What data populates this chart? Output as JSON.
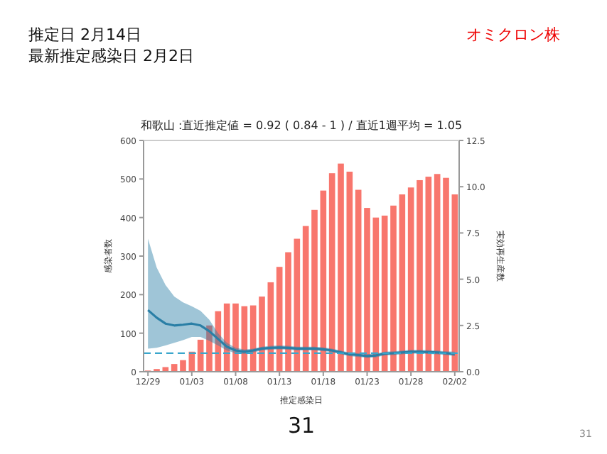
{
  "chart_data": {
    "type": "bar",
    "title": "和歌山 :直近推定値 = 0.92 ( 0.84 - 1 ) / 直近1週平均 = 1.05",
    "annotations": [
      "推定日  2月14日",
      "最新推定感染日  2月2日",
      "オミクロン株",
      "31",
      "31"
    ],
    "xlabel": "推定感染日",
    "ylabel": "感染者数",
    "y2label": "実効再生産数",
    "categories": [
      "12/29",
      null,
      null,
      null,
      null,
      "01/03",
      null,
      null,
      null,
      null,
      "01/08",
      null,
      null,
      null,
      null,
      "01/13",
      null,
      null,
      null,
      null,
      "01/18",
      null,
      null,
      null,
      null,
      "01/23",
      null,
      null,
      null,
      null,
      "01/28",
      null,
      null,
      null,
      null,
      "02/02"
    ],
    "series": [
      {
        "color": "#f8766d",
        "values": [
          3,
          7,
          12,
          20,
          30,
          52,
          83,
          120,
          157,
          177,
          177,
          170,
          172,
          195,
          232,
          272,
          310,
          345,
          378,
          420,
          470,
          515,
          540,
          519,
          472,
          425,
          400,
          405,
          431,
          460,
          478,
          497,
          506,
          513,
          503,
          460
        ]
      },
      {
        "type": "line",
        "axis": "y2",
        "color": "#2a7fa6",
        "values": [
          3.33,
          2.92,
          2.6,
          2.5,
          2.54,
          2.6,
          2.5,
          2.19,
          1.77,
          1.35,
          1.15,
          1.08,
          1.15,
          1.25,
          1.29,
          1.31,
          1.29,
          1.25,
          1.25,
          1.25,
          1.21,
          1.15,
          1.04,
          0.94,
          0.9,
          0.85,
          0.88,
          0.98,
          1.0,
          1.04,
          1.08,
          1.08,
          1.06,
          1.04,
          1.0,
          0.96
        ],
        "upper": [
          7.19,
          5.63,
          4.69,
          4.06,
          3.75,
          3.54,
          3.29,
          2.81,
          2.08,
          1.56,
          1.29,
          1.2,
          1.25,
          1.35,
          1.4,
          1.42,
          1.4,
          1.35,
          1.35,
          1.35,
          1.31,
          1.25,
          1.14,
          1.04,
          1.0,
          0.95,
          0.98,
          1.08,
          1.1,
          1.14,
          1.18,
          1.18,
          1.16,
          1.14,
          1.1,
          1.08
        ],
        "lower": [
          1.25,
          1.29,
          1.42,
          1.56,
          1.71,
          1.88,
          1.88,
          1.67,
          1.42,
          1.15,
          1.0,
          0.96,
          1.04,
          1.15,
          1.19,
          1.21,
          1.19,
          1.15,
          1.15,
          1.15,
          1.11,
          1.05,
          0.94,
          0.84,
          0.8,
          0.75,
          0.78,
          0.88,
          0.9,
          0.94,
          0.98,
          0.98,
          0.96,
          0.94,
          0.9,
          0.84
        ]
      }
    ],
    "ref_lines": [
      {
        "axis": "y2",
        "value": 1,
        "color": "#3aa6cc",
        "line_style": "dashed"
      }
    ],
    "ylim": [
      0,
      600
    ],
    "yticks": [
      0,
      100,
      200,
      300,
      400,
      500,
      600
    ],
    "y2lim": [
      0,
      12.5
    ],
    "y2ticks": [
      {
        "value": 0,
        "label": "0.0"
      },
      2.5,
      {
        "value": 5,
        "label": "5.0"
      },
      7.5,
      {
        "value": 10,
        "label": "10.0"
      },
      12.5
    ]
  }
}
